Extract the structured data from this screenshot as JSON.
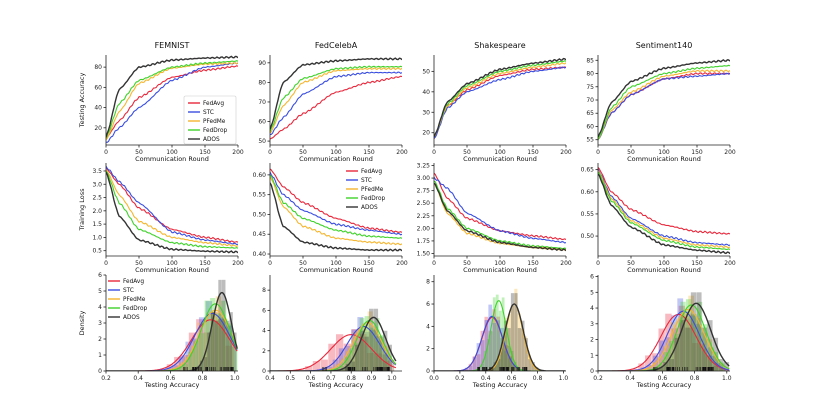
{
  "figure": {
    "legend_labels": [
      "FedAvg",
      "STC",
      "PFedMe",
      "FedDrop",
      "ADOS"
    ],
    "colors": {
      "FedAvg": "#e8283c",
      "STC": "#3a4ee0",
      "PFedMe": "#f5b630",
      "FedDrop": "#3fd22a",
      "ADOS": "#333333"
    }
  },
  "chart_data": [
    {
      "id": "r0c0",
      "type": "line",
      "title": "FEMNIST",
      "xlabel": "Communication Round",
      "ylabel": "Testing Accuracy",
      "xlim": [
        0,
        200
      ],
      "xticks": [
        0,
        50,
        100,
        150,
        200
      ],
      "ylim": [
        3,
        92
      ],
      "yticks": [
        0,
        20,
        40,
        60,
        80
      ],
      "legend": "center-right",
      "x": [
        0,
        20,
        50,
        100,
        150,
        200
      ],
      "series": [
        {
          "name": "FedAvg",
          "values": [
            10,
            27,
            50,
            70,
            77,
            81
          ]
        },
        {
          "name": "STC",
          "values": [
            5,
            20,
            40,
            67,
            80,
            84
          ]
        },
        {
          "name": "PFedMe",
          "values": [
            8,
            36,
            64,
            79,
            83,
            84
          ]
        },
        {
          "name": "FedDrop",
          "values": [
            10,
            44,
            67,
            80,
            84,
            86
          ]
        },
        {
          "name": "ADOS",
          "values": [
            11,
            58,
            80,
            87,
            89,
            90
          ]
        }
      ]
    },
    {
      "id": "r0c1",
      "type": "line",
      "title": "FedCelebA",
      "xlabel": "Communication Round",
      "ylabel": "",
      "xlim": [
        0,
        200
      ],
      "xticks": [
        0,
        50,
        100,
        150,
        200
      ],
      "ylim": [
        48,
        94
      ],
      "yticks": [
        50,
        60,
        70,
        80,
        90
      ],
      "legend": "none",
      "x": [
        0,
        20,
        50,
        100,
        150,
        200
      ],
      "series": [
        {
          "name": "FedAvg",
          "values": [
            51,
            56,
            64,
            75,
            80,
            83
          ]
        },
        {
          "name": "STC",
          "values": [
            53,
            62,
            74,
            83,
            85,
            85
          ]
        },
        {
          "name": "PFedMe",
          "values": [
            54,
            68,
            80,
            86,
            87,
            87
          ]
        },
        {
          "name": "FedDrop",
          "values": [
            55,
            72,
            82,
            87,
            88,
            88
          ]
        },
        {
          "name": "ADOS",
          "values": [
            56,
            80,
            89,
            91,
            92,
            92
          ]
        }
      ]
    },
    {
      "id": "r0c2",
      "type": "line",
      "title": "Shakespeare",
      "xlabel": "Communication Round",
      "ylabel": "",
      "xlim": [
        0,
        200
      ],
      "xticks": [
        0,
        50,
        100,
        150,
        200
      ],
      "ylim": [
        14,
        58
      ],
      "yticks": [
        20,
        30,
        40,
        50
      ],
      "legend": "none",
      "x": [
        0,
        20,
        50,
        100,
        150,
        200
      ],
      "series": [
        {
          "name": "FedAvg",
          "values": [
            17,
            33,
            41,
            48,
            51,
            52
          ]
        },
        {
          "name": "STC",
          "values": [
            17,
            32,
            40,
            46,
            50,
            52
          ]
        },
        {
          "name": "PFedMe",
          "values": [
            18,
            33,
            42,
            49,
            52,
            54
          ]
        },
        {
          "name": "FedDrop",
          "values": [
            18,
            34,
            43,
            50,
            53,
            55
          ]
        },
        {
          "name": "ADOS",
          "values": [
            18,
            35,
            44,
            51,
            54,
            56
          ]
        }
      ]
    },
    {
      "id": "r0c3",
      "type": "line",
      "title": "Sentiment140",
      "xlabel": "Communication Round",
      "ylabel": "",
      "xlim": [
        0,
        200
      ],
      "xticks": [
        0,
        50,
        100,
        150,
        200
      ],
      "ylim": [
        53,
        87
      ],
      "yticks": [
        55,
        60,
        65,
        70,
        75,
        80,
        85
      ],
      "legend": "none",
      "x": [
        0,
        20,
        50,
        100,
        150,
        200
      ],
      "series": [
        {
          "name": "FedAvg",
          "values": [
            55,
            65,
            72,
            78,
            80,
            80
          ]
        },
        {
          "name": "STC",
          "values": [
            55,
            65,
            72,
            78,
            79,
            80
          ]
        },
        {
          "name": "PFedMe",
          "values": [
            55,
            66,
            73,
            79,
            81,
            81
          ]
        },
        {
          "name": "FedDrop",
          "values": [
            55,
            67,
            75,
            80,
            82,
            83
          ]
        },
        {
          "name": "ADOS",
          "values": [
            56,
            69,
            77,
            82,
            84,
            85
          ]
        }
      ]
    },
    {
      "id": "r1c0",
      "type": "line",
      "title": "",
      "xlabel": "Communication Round",
      "ylabel": "Training Loss",
      "xlim": [
        0,
        200
      ],
      "xticks": [
        0,
        50,
        100,
        150,
        200
      ],
      "ylim": [
        0.3,
        3.8
      ],
      "yticks": [
        0.5,
        1.0,
        1.5,
        2.0,
        2.5,
        3.0,
        3.5
      ],
      "legend": "none",
      "x": [
        0,
        20,
        50,
        100,
        150,
        200
      ],
      "series": [
        {
          "name": "FedAvg",
          "values": [
            3.6,
            3.0,
            2.1,
            1.3,
            1.0,
            0.82
          ]
        },
        {
          "name": "STC",
          "values": [
            3.65,
            3.1,
            2.3,
            1.2,
            0.9,
            0.75
          ]
        },
        {
          "name": "PFedMe",
          "values": [
            3.55,
            2.6,
            1.6,
            1.0,
            0.8,
            0.68
          ]
        },
        {
          "name": "FedDrop",
          "values": [
            3.5,
            2.3,
            1.3,
            0.8,
            0.65,
            0.6
          ]
        },
        {
          "name": "ADOS",
          "values": [
            3.45,
            1.8,
            0.9,
            0.55,
            0.48,
            0.45
          ]
        }
      ]
    },
    {
      "id": "r1c1",
      "type": "line",
      "title": "",
      "xlabel": "Communication Round",
      "ylabel": "",
      "xlim": [
        0,
        200
      ],
      "xticks": [
        0,
        50,
        100,
        150,
        200
      ],
      "ylim": [
        0.395,
        0.63
      ],
      "yticks": [
        0.4,
        0.45,
        0.5,
        0.55,
        0.6
      ],
      "legend": "top-right",
      "x": [
        0,
        20,
        50,
        100,
        150,
        200
      ],
      "series": [
        {
          "name": "FedAvg",
          "values": [
            0.615,
            0.57,
            0.53,
            0.49,
            0.465,
            0.455
          ]
        },
        {
          "name": "STC",
          "values": [
            0.605,
            0.55,
            0.51,
            0.475,
            0.46,
            0.45
          ]
        },
        {
          "name": "PFedMe",
          "values": [
            0.595,
            0.52,
            0.47,
            0.44,
            0.43,
            0.425
          ]
        },
        {
          "name": "FedDrop",
          "values": [
            0.6,
            0.53,
            0.49,
            0.46,
            0.445,
            0.44
          ]
        },
        {
          "name": "ADOS",
          "values": [
            0.58,
            0.47,
            0.43,
            0.415,
            0.41,
            0.41
          ]
        }
      ]
    },
    {
      "id": "r1c2",
      "type": "line",
      "title": "",
      "xlabel": "Communication Round",
      "ylabel": "",
      "xlim": [
        0,
        200
      ],
      "xticks": [
        0,
        50,
        100,
        150,
        200
      ],
      "ylim": [
        1.45,
        3.3
      ],
      "yticks": [
        1.5,
        1.75,
        2.0,
        2.25,
        2.5,
        2.75,
        3.0,
        3.25
      ],
      "legend": "none",
      "x": [
        0,
        20,
        50,
        100,
        150,
        200
      ],
      "series": [
        {
          "name": "FedAvg",
          "values": [
            3.1,
            2.6,
            2.2,
            1.95,
            1.85,
            1.78
          ]
        },
        {
          "name": "STC",
          "values": [
            3.0,
            2.8,
            2.3,
            1.95,
            1.8,
            1.72
          ]
        },
        {
          "name": "PFedMe",
          "values": [
            2.9,
            2.3,
            1.9,
            1.7,
            1.62,
            1.58
          ]
        },
        {
          "name": "FedDrop",
          "values": [
            2.95,
            2.4,
            2.0,
            1.75,
            1.65,
            1.6
          ]
        },
        {
          "name": "ADOS",
          "values": [
            2.9,
            2.35,
            1.95,
            1.72,
            1.62,
            1.57
          ]
        }
      ]
    },
    {
      "id": "r1c3",
      "type": "line",
      "title": "",
      "xlabel": "Communication Round",
      "ylabel": "",
      "xlim": [
        0,
        200
      ],
      "xticks": [
        0,
        50,
        100,
        150,
        200
      ],
      "ylim": [
        0.455,
        0.665
      ],
      "yticks": [
        0.5,
        0.55,
        0.6,
        0.65
      ],
      "legend": "none",
      "x": [
        0,
        20,
        50,
        100,
        150,
        200
      ],
      "series": [
        {
          "name": "FedAvg",
          "values": [
            0.655,
            0.6,
            0.56,
            0.525,
            0.51,
            0.505
          ]
        },
        {
          "name": "STC",
          "values": [
            0.65,
            0.59,
            0.54,
            0.5,
            0.485,
            0.48
          ]
        },
        {
          "name": "PFedMe",
          "values": [
            0.648,
            0.585,
            0.535,
            0.495,
            0.48,
            0.475
          ]
        },
        {
          "name": "FedDrop",
          "values": [
            0.645,
            0.58,
            0.53,
            0.49,
            0.475,
            0.47
          ]
        },
        {
          "name": "ADOS",
          "values": [
            0.64,
            0.57,
            0.52,
            0.48,
            0.468,
            0.462
          ]
        }
      ]
    },
    {
      "id": "r2c0",
      "type": "area",
      "title": "",
      "xlabel": "Testing Accuracy",
      "ylabel": "Density",
      "xlim": [
        0.2,
        1.02
      ],
      "xticks": [
        0.2,
        0.4,
        0.6,
        0.8,
        1.0
      ],
      "ylim": [
        0,
        6
      ],
      "yticks": [
        0,
        1,
        2,
        3,
        4,
        5,
        6
      ],
      "legend": "top-left",
      "series": [
        {
          "name": "FedAvg",
          "mean": 0.85,
          "sd": 0.12,
          "peak": 3.2
        },
        {
          "name": "STC",
          "mean": 0.86,
          "sd": 0.11,
          "peak": 3.6
        },
        {
          "name": "PFedMe",
          "mean": 0.88,
          "sd": 0.1,
          "peak": 3.8
        },
        {
          "name": "FedDrop",
          "mean": 0.88,
          "sd": 0.09,
          "peak": 4.2
        },
        {
          "name": "ADOS",
          "mean": 0.92,
          "sd": 0.06,
          "peak": 4.9
        }
      ]
    },
    {
      "id": "r2c1",
      "type": "area",
      "title": "",
      "xlabel": "Testing Accuracy",
      "ylabel": "",
      "xlim": [
        0.4,
        1.05
      ],
      "xticks": [
        0.4,
        0.5,
        0.6,
        0.7,
        0.8,
        0.9,
        1.0
      ],
      "ylim": [
        0,
        9.5
      ],
      "yticks": [
        0,
        2,
        4,
        6,
        8
      ],
      "legend": "none",
      "series": [
        {
          "name": "FedAvg",
          "mean": 0.8,
          "sd": 0.1,
          "peak": 3.6
        },
        {
          "name": "STC",
          "mean": 0.86,
          "sd": 0.08,
          "peak": 4.4
        },
        {
          "name": "PFedMe",
          "mean": 0.88,
          "sd": 0.07,
          "peak": 4.8
        },
        {
          "name": "FedDrop",
          "mean": 0.89,
          "sd": 0.065,
          "peak": 5.0
        },
        {
          "name": "ADOS",
          "mean": 0.91,
          "sd": 0.06,
          "peak": 5.3
        }
      ]
    },
    {
      "id": "r2c2",
      "type": "area",
      "title": "",
      "xlabel": "Testing Accuracy",
      "ylabel": "",
      "xlim": [
        0,
        1.02
      ],
      "xticks": [
        0,
        0.2,
        0.4,
        0.6,
        0.8,
        1.0
      ],
      "ylim": [
        0,
        8.6
      ],
      "yticks": [
        0,
        2,
        4,
        6,
        8
      ],
      "legend": "none",
      "series": [
        {
          "name": "FedAvg",
          "mean": 0.45,
          "sd": 0.08,
          "peak": 4.8
        },
        {
          "name": "STC",
          "mean": 0.45,
          "sd": 0.08,
          "peak": 4.9
        },
        {
          "name": "PFedMe",
          "mean": 0.62,
          "sd": 0.065,
          "peak": 6.0
        },
        {
          "name": "FedDrop",
          "mean": 0.5,
          "sd": 0.06,
          "peak": 6.3
        },
        {
          "name": "ADOS",
          "mean": 0.62,
          "sd": 0.07,
          "peak": 6.0
        }
      ]
    },
    {
      "id": "r2c3",
      "type": "area",
      "title": "",
      "xlabel": "Testing Accuracy",
      "ylabel": "",
      "xlim": [
        0.2,
        1.02
      ],
      "xticks": [
        0.2,
        0.4,
        0.6,
        0.8,
        1.0
      ],
      "ylim": [
        0,
        6.1
      ],
      "yticks": [
        0,
        1,
        2,
        3,
        4,
        5,
        6
      ],
      "legend": "none",
      "series": [
        {
          "name": "FedAvg",
          "mean": 0.7,
          "sd": 0.11,
          "peak": 3.6
        },
        {
          "name": "STC",
          "mean": 0.73,
          "sd": 0.1,
          "peak": 3.8
        },
        {
          "name": "PFedMe",
          "mean": 0.76,
          "sd": 0.1,
          "peak": 3.9
        },
        {
          "name": "FedDrop",
          "mean": 0.78,
          "sd": 0.09,
          "peak": 4.2
        },
        {
          "name": "ADOS",
          "mean": 0.81,
          "sd": 0.09,
          "peak": 4.3
        }
      ]
    }
  ]
}
